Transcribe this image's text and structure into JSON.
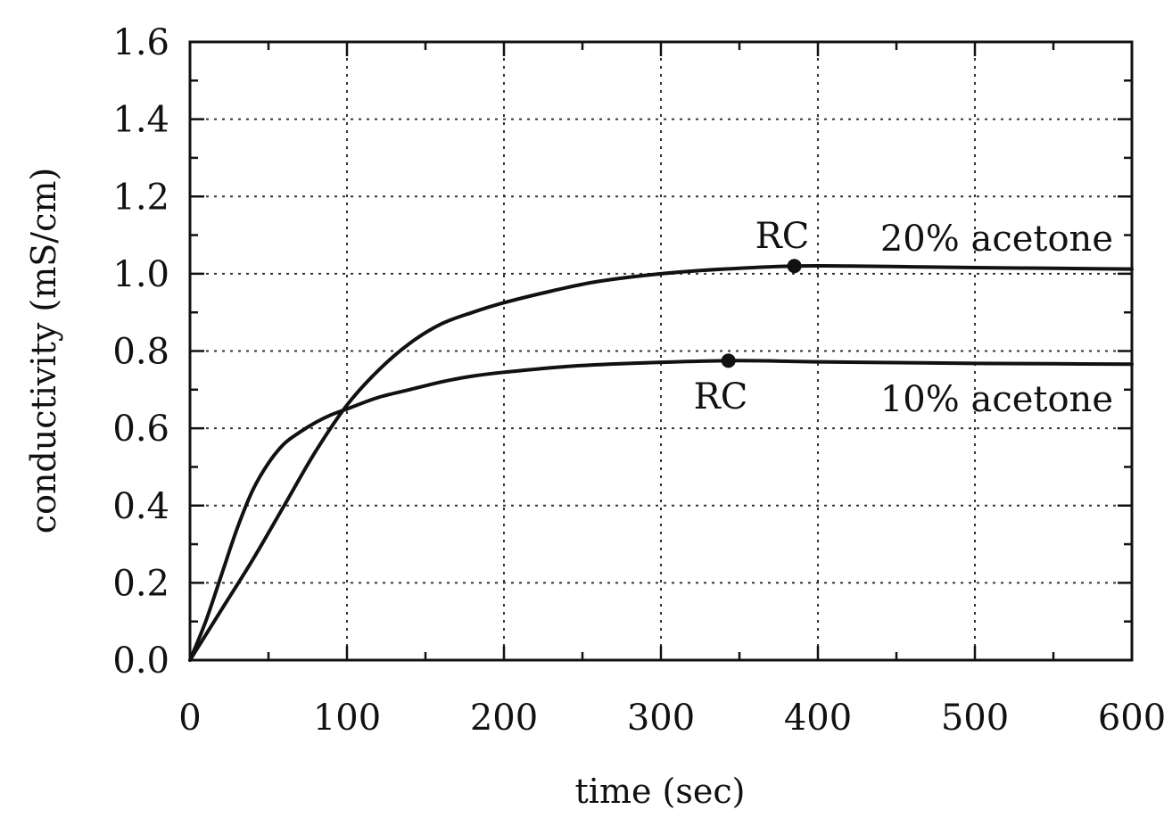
{
  "chart_data": {
    "type": "line",
    "xlabel": "time (sec)",
    "ylabel": "conductivity (mS/cm)",
    "xlim": [
      0,
      600
    ],
    "ylim": [
      0,
      1.6
    ],
    "xticks": [
      0,
      100,
      200,
      300,
      400,
      500,
      600
    ],
    "xtick_labels": [
      "0",
      "100",
      "200",
      "300",
      "400",
      "500",
      "600"
    ],
    "yticks": [
      0,
      0.2,
      0.4,
      0.6,
      0.8,
      1.0,
      1.2,
      1.4,
      1.6
    ],
    "ytick_labels": [
      "0.0",
      "0.2",
      "0.4",
      "0.6",
      "0.8",
      "1.0",
      "1.2",
      "1.4",
      "1.6"
    ],
    "grid": true,
    "series": [
      {
        "name": "20% acetone",
        "x": [
          0,
          20,
          40,
          60,
          80,
          100,
          120,
          140,
          160,
          180,
          200,
          230,
          260,
          300,
          340,
          385,
          420,
          460,
          500,
          550,
          600
        ],
        "y": [
          0,
          0.13,
          0.26,
          0.4,
          0.54,
          0.66,
          0.75,
          0.82,
          0.87,
          0.9,
          0.925,
          0.955,
          0.98,
          1.0,
          1.012,
          1.02,
          1.02,
          1.018,
          1.016,
          1.014,
          1.012
        ]
      },
      {
        "name": "10% acetone",
        "x": [
          0,
          10,
          20,
          30,
          40,
          50,
          60,
          70,
          80,
          90,
          100,
          120,
          140,
          160,
          180,
          200,
          240,
          280,
          343,
          400,
          450,
          500,
          550,
          600
        ],
        "y": [
          0,
          0.1,
          0.22,
          0.34,
          0.44,
          0.51,
          0.56,
          0.59,
          0.615,
          0.635,
          0.65,
          0.68,
          0.7,
          0.72,
          0.735,
          0.745,
          0.76,
          0.768,
          0.775,
          0.772,
          0.77,
          0.768,
          0.767,
          0.766
        ]
      }
    ],
    "annotations": [
      {
        "text": "RC",
        "x": 385,
        "y": 1.02,
        "marker": true
      },
      {
        "text": "RC",
        "x": 343,
        "y": 0.775,
        "marker": true
      },
      {
        "text": "20% acetone"
      },
      {
        "text": "10% acetone"
      }
    ]
  }
}
